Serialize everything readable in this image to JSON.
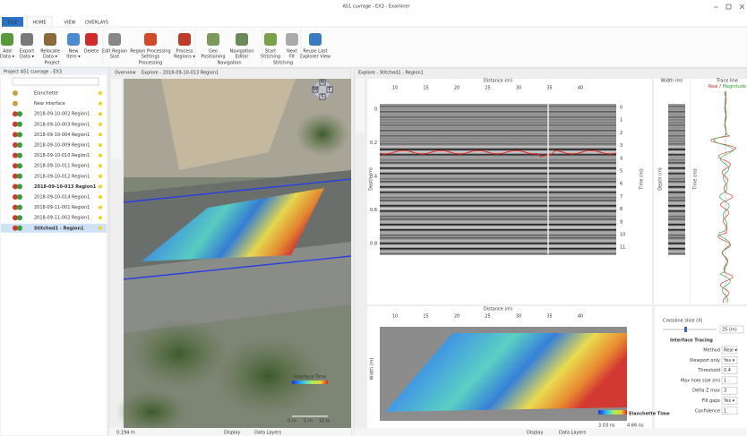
{
  "window": {
    "title": "A51 cuvrage - EX3 - Examiner"
  },
  "ribbon": {
    "tabs": [
      "FILE",
      "HOME",
      "VIEW",
      "OVERLAYS"
    ],
    "buttons": [
      [
        "Add",
        "Data ▾"
      ],
      [
        "Export",
        "Data ▾"
      ],
      [
        "Relocate",
        "Data ▾"
      ],
      [
        "New",
        "Item ▾"
      ],
      [
        "Delete"
      ],
      [
        "Edit Region",
        "Size"
      ],
      [
        "Region Processing",
        "Settings"
      ],
      [
        "Process",
        "Regions ▾"
      ],
      [
        "Geo",
        "Positioning"
      ],
      [
        "Navigation",
        "Editor"
      ],
      [
        "Start",
        "Stitching"
      ],
      [
        "Next",
        "Fit"
      ],
      [
        "Reuse Last",
        "Explorer View"
      ]
    ],
    "groups": [
      "Project",
      "Processing",
      "Navigation",
      "Stitching"
    ]
  },
  "project_panel": {
    "title": "Project A51 cuvrage - EX3",
    "items": [
      "Elanchette",
      "New interface",
      "2018-09-10-002 Region1",
      "2018-09-10-003 Region1",
      "2018-09-10-004 Region1",
      "2018-09-10-009 Region1",
      "2018-09-10-010 Region1",
      "2018-09-10-011 Region1",
      "2018-09-10-012 Region1",
      "2018-09-10-013 Region1",
      "2018-09-10-014 Region1",
      "2018-09-11-001 Region1",
      "2018-09-11-002 Region1",
      "Stitched1 - Region1"
    ]
  },
  "overview": {
    "tabs": [
      "Overview",
      "Explore - 2018-09-10-013 Region1"
    ],
    "compass": [
      "N",
      "W",
      "E",
      "S"
    ],
    "legend_title": "Interface Time",
    "scale": [
      "0 m",
      "5 m",
      "10 m"
    ],
    "status": "0.194 m",
    "footer": [
      "Display",
      "Data Layers"
    ]
  },
  "explore": {
    "tab": "Explore - Stitched1 - Region1",
    "radargram": {
      "x_label": "Distance (m)",
      "x_ticks": [
        "10",
        "15",
        "20",
        "25",
        "30",
        "35",
        "40"
      ],
      "y_label": "Depth (m)",
      "y_ticks": [
        "0",
        "0.2",
        "0.4",
        "0.6",
        "0.8"
      ],
      "y2_label": "Time (ns)",
      "y2_ticks": [
        "0",
        "1",
        "2",
        "3",
        "4",
        "5",
        "6",
        "7",
        "8",
        "9",
        "10",
        "11"
      ]
    },
    "width_panel": {
      "label": "Width (m)",
      "y_label": "Depth (m)",
      "y2_label": "Time (ns)"
    },
    "trace_panel": {
      "title": "Trace line",
      "real": "Real",
      "separator": " / ",
      "magnitude": "Magnitude"
    },
    "map": {
      "x_label": "Distance (m)",
      "x_ticks": [
        "10",
        "15",
        "20",
        "25",
        "30",
        "35",
        "40"
      ],
      "y_label": "Width (m)",
      "legend_title": "Elanchette Time",
      "legend_min": "3.03 ns",
      "legend_max": "4.66 ns"
    },
    "properties": {
      "crossline": "Crossline slice (X)",
      "crossline_value": "25 (m)",
      "section": "Interface Tracing",
      "rows": [
        {
          "label": "Method",
          "value": "Real ▾"
        },
        {
          "label": "Viewport only",
          "value": "Yes ▾"
        },
        {
          "label": "Threshold",
          "value": "0.4"
        },
        {
          "label": "Max hole size (m)",
          "value": "1"
        },
        {
          "label": "Delta Z max",
          "value": "3"
        },
        {
          "label": "Fill gaps",
          "value": "Yes ▾"
        },
        {
          "label": "Confidence",
          "value": "1"
        }
      ]
    },
    "footer": [
      "Display",
      "Data Layers"
    ]
  }
}
